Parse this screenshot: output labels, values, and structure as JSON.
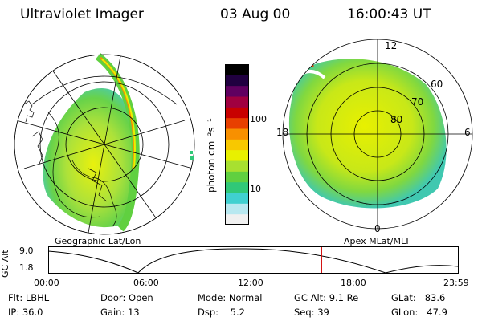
{
  "header": {
    "instrument": "Ultraviolet Imager",
    "date": "03 Aug 00",
    "time": "16:00:43 UT"
  },
  "colorbar": {
    "label": "photon cm⁻²s⁻¹",
    "ticks": [
      "100",
      "10"
    ],
    "colors": [
      "#f0f0f0",
      "#b8e8f0",
      "#40d0d0",
      "#30c878",
      "#60d040",
      "#a8e030",
      "#e8f000",
      "#f8c800",
      "#f89000",
      "#e84000",
      "#c80000",
      "#a00040",
      "#600060",
      "#200040",
      "#000000"
    ]
  },
  "left_map": {
    "caption": "Geographic Lat/Lon"
  },
  "right_map": {
    "caption": "Apex MLat/MLT",
    "mlt_labels": {
      "top": "12",
      "left": "18",
      "right": "6",
      "bottom": "0"
    },
    "lat_labels": [
      "60",
      "70",
      "80"
    ]
  },
  "altitude_plot": {
    "ylabel": "GC Alt",
    "yticks": [
      "9.0",
      "1.8"
    ],
    "xticks": [
      "00:00",
      "06:00",
      "12:00",
      "18:00",
      "23:59"
    ],
    "current_time_fraction": 0.667
  },
  "status": {
    "flt_label": "Flt:",
    "flt_value": "LBHL",
    "ip_label": "IP:",
    "ip_value": "36.0",
    "door_label": "Door:",
    "door_value": "Open",
    "gain_label": "Gain:",
    "gain_value": "13",
    "mode_label": "Mode:",
    "mode_value": "Normal",
    "dsp_label": "Dsp:",
    "dsp_value": "5.2",
    "gcalt_label": "GC Alt:",
    "gcalt_value": "9.1 Re",
    "seq_label": "Seq:",
    "seq_value": "39",
    "glat_label": "GLat:",
    "glat_value": "83.6",
    "glon_label": "GLon:",
    "glon_value": "47.9"
  }
}
